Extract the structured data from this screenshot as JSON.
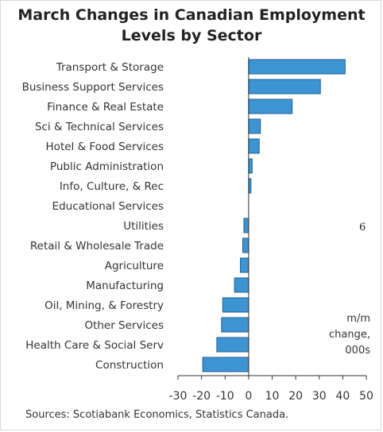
{
  "chart_data": {
    "type": "bar",
    "orientation": "horizontal",
    "title": "March Changes in Canadian Employment Levels by Sector",
    "title_lines": [
      "March Changes in Canadian Employment",
      "Levels by Sector"
    ],
    "categories": [
      "Transport & Storage",
      "Business Support Services",
      "Finance & Real Estate",
      "Sci & Technical Services",
      "Hotel & Food Services",
      "Public Administration",
      "Info, Culture, & Rec",
      "Educational Services",
      "Utilities",
      "Retail & Wholesale Trade",
      "Agriculture",
      "Manufacturing",
      "Oil, Mining, & Forestry",
      "Other Services",
      "Health Care & Social Serv",
      "Construction"
    ],
    "values": [
      41,
      30.5,
      18.5,
      5,
      4.5,
      1.5,
      1,
      0,
      -2,
      -2.5,
      -3.5,
      -6,
      -11,
      -11.5,
      -13.5,
      -19.5
    ],
    "xlim": [
      -30,
      50
    ],
    "xticks": [
      "-30",
      "-20",
      "-10",
      "0",
      "10",
      "20",
      "30",
      "40",
      "50"
    ],
    "unit_label": [
      "m/m",
      "change,",
      "000s"
    ],
    "grid": false,
    "bar_color": "#3c95d2",
    "bar_edge_color": "#1f5f93"
  },
  "source": "Sources: Scotiabank Economics, Statistics Canada.",
  "stray_mark": "6"
}
